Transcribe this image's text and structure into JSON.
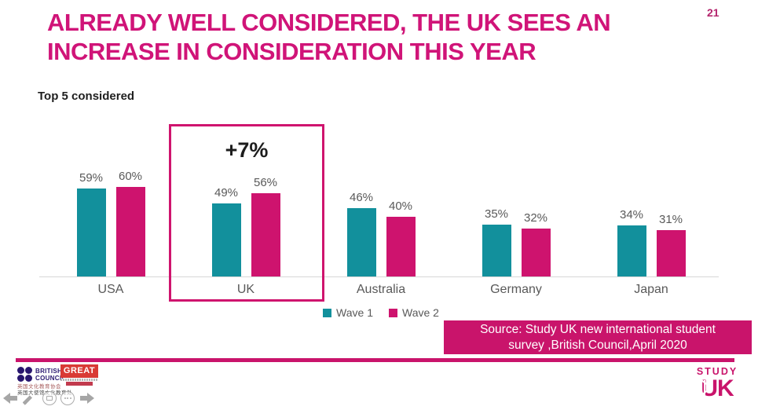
{
  "slide": {
    "title_line1": "ALREADY WELL CONSIDERED, THE UK SEES AN",
    "title_line2": "INCREASE IN CONSIDERATION THIS YEAR",
    "page_number": "21",
    "chart_label": "Top 5 considered"
  },
  "chart_data": {
    "type": "bar",
    "title": "Top 5 considered",
    "categories": [
      "USA",
      "UK",
      "Australia",
      "Germany",
      "Japan"
    ],
    "series": [
      {
        "name": "Wave 1",
        "color": "#12909c",
        "values": [
          59,
          49,
          46,
          35,
          34
        ]
      },
      {
        "name": "Wave 2",
        "color": "#ce136e",
        "values": [
          60,
          56,
          40,
          32,
          31
        ]
      }
    ],
    "value_suffix": "%",
    "ylim": [
      0,
      100
    ],
    "grid": false,
    "legend_position": "bottom",
    "highlight": {
      "category": "UK",
      "annotation": "+7%",
      "box_color": "#cf146e"
    }
  },
  "source_box": {
    "line1": "Source: Study UK new international student",
    "line2": "survey ,British Council,April 2020"
  },
  "footer": {
    "british_council": {
      "line1": "BRITISH",
      "line2": "COUNCIL"
    },
    "great_label": "GREAT",
    "chinese_line1": "英国文化教育协会",
    "chinese_line2": "英国大使馆文化教育处",
    "study_uk": {
      "top": "STUDY",
      "bottom": "UK"
    }
  },
  "colors": {
    "accent": "#c9146b",
    "title": "#d01478",
    "wave1": "#12909c",
    "wave2": "#ce136e",
    "label_gray": "#595959"
  }
}
